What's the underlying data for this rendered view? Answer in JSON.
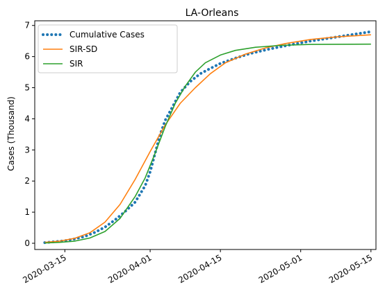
{
  "chart_data": {
    "type": "line",
    "title": "LA-Orleans",
    "xlabel": "",
    "ylabel": "Cases (Thousand)",
    "x_ticks": [
      "2020-03-15",
      "2020-04-01",
      "2020-04-15",
      "2020-05-01",
      "2020-05-15"
    ],
    "y_ticks": [
      0,
      1,
      2,
      3,
      4,
      5,
      6,
      7
    ],
    "xlim": [
      "2020-03-09",
      "2020-05-16"
    ],
    "ylim": [
      -0.2,
      7.15
    ],
    "grid": false,
    "legend_position": "top-left",
    "series": [
      {
        "name": "Cumulative Cases",
        "color": "#1f77b4",
        "style": "dotted",
        "points": [
          [
            "2020-03-11",
            0.02
          ],
          [
            "2020-03-13",
            0.05
          ],
          [
            "2020-03-15",
            0.08
          ],
          [
            "2020-03-17",
            0.14
          ],
          [
            "2020-03-19",
            0.22
          ],
          [
            "2020-03-21",
            0.35
          ],
          [
            "2020-03-23",
            0.52
          ],
          [
            "2020-03-25",
            0.75
          ],
          [
            "2020-03-27",
            1.02
          ],
          [
            "2020-03-29",
            1.32
          ],
          [
            "2020-03-31",
            1.85
          ],
          [
            "2020-04-01",
            2.3
          ],
          [
            "2020-04-02",
            2.9
          ],
          [
            "2020-04-03",
            3.5
          ],
          [
            "2020-04-04",
            3.95
          ],
          [
            "2020-04-05",
            4.25
          ],
          [
            "2020-04-06",
            4.55
          ],
          [
            "2020-04-07",
            4.85
          ],
          [
            "2020-04-09",
            5.2
          ],
          [
            "2020-04-11",
            5.45
          ],
          [
            "2020-04-13",
            5.62
          ],
          [
            "2020-04-15",
            5.78
          ],
          [
            "2020-04-18",
            5.95
          ],
          [
            "2020-04-21",
            6.1
          ],
          [
            "2020-04-25",
            6.25
          ],
          [
            "2020-04-29",
            6.38
          ],
          [
            "2020-05-03",
            6.5
          ],
          [
            "2020-05-07",
            6.6
          ],
          [
            "2020-05-11",
            6.7
          ],
          [
            "2020-05-15",
            6.8
          ]
        ]
      },
      {
        "name": "SIR-SD",
        "color": "#ff7f0e",
        "style": "solid",
        "points": [
          [
            "2020-03-11",
            0.03
          ],
          [
            "2020-03-14",
            0.07
          ],
          [
            "2020-03-17",
            0.16
          ],
          [
            "2020-03-20",
            0.34
          ],
          [
            "2020-03-23",
            0.68
          ],
          [
            "2020-03-26",
            1.25
          ],
          [
            "2020-03-29",
            2.05
          ],
          [
            "2020-04-01",
            2.95
          ],
          [
            "2020-04-04",
            3.8
          ],
          [
            "2020-04-07",
            4.5
          ],
          [
            "2020-04-10",
            5.0
          ],
          [
            "2020-04-13",
            5.45
          ],
          [
            "2020-04-16",
            5.8
          ],
          [
            "2020-04-20",
            6.08
          ],
          [
            "2020-04-24",
            6.28
          ],
          [
            "2020-04-28",
            6.42
          ],
          [
            "2020-05-03",
            6.55
          ],
          [
            "2020-05-08",
            6.63
          ],
          [
            "2020-05-15",
            6.7
          ]
        ]
      },
      {
        "name": "SIR",
        "color": "#2ca02c",
        "style": "solid",
        "points": [
          [
            "2020-03-11",
            0.01
          ],
          [
            "2020-03-14",
            0.03
          ],
          [
            "2020-03-17",
            0.07
          ],
          [
            "2020-03-20",
            0.17
          ],
          [
            "2020-03-23",
            0.38
          ],
          [
            "2020-03-26",
            0.8
          ],
          [
            "2020-03-29",
            1.5
          ],
          [
            "2020-03-31",
            2.1
          ],
          [
            "2020-04-02",
            2.9
          ],
          [
            "2020-04-04",
            3.75
          ],
          [
            "2020-04-06",
            4.5
          ],
          [
            "2020-04-08",
            5.05
          ],
          [
            "2020-04-10",
            5.5
          ],
          [
            "2020-04-12",
            5.8
          ],
          [
            "2020-04-15",
            6.05
          ],
          [
            "2020-04-18",
            6.2
          ],
          [
            "2020-04-22",
            6.3
          ],
          [
            "2020-04-27",
            6.36
          ],
          [
            "2020-05-03",
            6.39
          ],
          [
            "2020-05-15",
            6.4
          ]
        ]
      }
    ]
  }
}
